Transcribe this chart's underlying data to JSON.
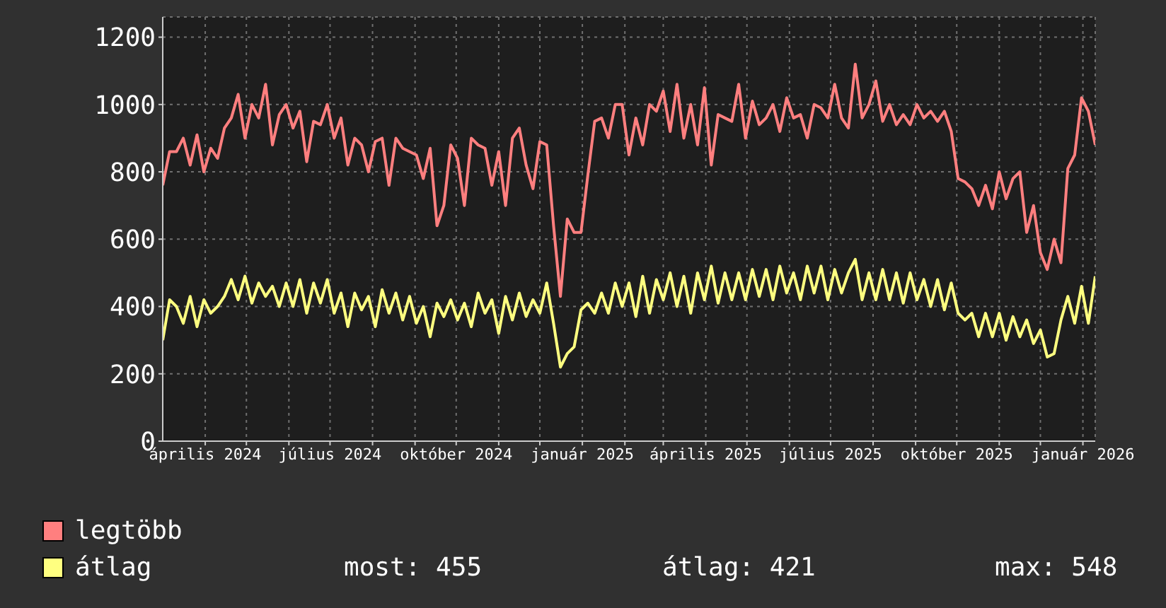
{
  "chart_data": {
    "type": "line",
    "x": [
      "2024-03-01",
      "2024-03-06",
      "2024-03-11",
      "2024-03-16",
      "2024-03-21",
      "2024-03-26",
      "2024-03-31",
      "2024-04-05",
      "2024-04-10",
      "2024-04-15",
      "2024-04-20",
      "2024-04-25",
      "2024-04-30",
      "2024-05-05",
      "2024-05-10",
      "2024-05-15",
      "2024-05-20",
      "2024-05-25",
      "2024-05-30",
      "2024-06-04",
      "2024-06-09",
      "2024-06-14",
      "2024-06-19",
      "2024-06-24",
      "2024-06-29",
      "2024-07-04",
      "2024-07-09",
      "2024-07-14",
      "2024-07-19",
      "2024-07-24",
      "2024-07-29",
      "2024-08-03",
      "2024-08-08",
      "2024-08-13",
      "2024-08-18",
      "2024-08-23",
      "2024-08-28",
      "2024-09-02",
      "2024-09-07",
      "2024-09-12",
      "2024-09-17",
      "2024-09-22",
      "2024-09-27",
      "2024-10-02",
      "2024-10-07",
      "2024-10-12",
      "2024-10-17",
      "2024-10-22",
      "2024-10-27",
      "2024-11-01",
      "2024-11-06",
      "2024-11-11",
      "2024-11-16",
      "2024-11-21",
      "2024-11-26",
      "2024-12-01",
      "2024-12-06",
      "2024-12-11",
      "2024-12-16",
      "2024-12-21",
      "2024-12-26",
      "2024-12-31",
      "2025-01-05",
      "2025-01-10",
      "2025-01-15",
      "2025-01-20",
      "2025-01-25",
      "2025-01-30",
      "2025-02-04",
      "2025-02-09",
      "2025-02-14",
      "2025-02-19",
      "2025-02-24",
      "2025-03-01",
      "2025-03-06",
      "2025-03-11",
      "2025-03-16",
      "2025-03-21",
      "2025-03-26",
      "2025-03-31",
      "2025-04-05",
      "2025-04-10",
      "2025-04-15",
      "2025-04-20",
      "2025-04-25",
      "2025-04-30",
      "2025-05-05",
      "2025-05-10",
      "2025-05-15",
      "2025-05-20",
      "2025-05-25",
      "2025-05-30",
      "2025-06-04",
      "2025-06-09",
      "2025-06-14",
      "2025-06-19",
      "2025-06-24",
      "2025-06-29",
      "2025-07-04",
      "2025-07-09",
      "2025-07-14",
      "2025-07-19",
      "2025-07-24",
      "2025-07-29",
      "2025-08-03",
      "2025-08-08",
      "2025-08-13",
      "2025-08-18",
      "2025-08-23",
      "2025-08-28",
      "2025-09-02",
      "2025-09-07",
      "2025-09-12",
      "2025-09-17",
      "2025-09-22",
      "2025-09-27",
      "2025-10-02",
      "2025-10-07",
      "2025-10-12",
      "2025-10-17",
      "2025-10-22",
      "2025-10-27",
      "2025-11-01",
      "2025-11-06",
      "2025-11-11",
      "2025-11-16",
      "2025-11-21",
      "2025-11-26",
      "2025-12-01",
      "2025-12-06",
      "2025-12-11",
      "2025-12-16",
      "2025-12-21",
      "2025-12-26",
      "2025-12-31",
      "2026-01-05",
      "2026-01-10"
    ],
    "series": [
      {
        "name": "legtöbb",
        "color": "#ff7f7f",
        "values": [
          760,
          860,
          860,
          900,
          820,
          910,
          800,
          870,
          840,
          930,
          960,
          1030,
          900,
          1000,
          960,
          1060,
          880,
          970,
          1000,
          930,
          980,
          830,
          950,
          940,
          1000,
          900,
          960,
          820,
          900,
          880,
          800,
          890,
          900,
          760,
          900,
          870,
          860,
          850,
          780,
          870,
          640,
          700,
          880,
          840,
          700,
          900,
          880,
          870,
          760,
          860,
          700,
          900,
          930,
          820,
          750,
          890,
          880,
          640,
          430,
          660,
          620,
          620,
          790,
          950,
          960,
          900,
          1000,
          1000,
          850,
          960,
          880,
          1000,
          980,
          1040,
          920,
          1060,
          900,
          1000,
          880,
          1050,
          820,
          970,
          960,
          950,
          1060,
          900,
          1010,
          940,
          960,
          1000,
          920,
          1020,
          960,
          970,
          900,
          1000,
          990,
          960,
          1060,
          960,
          930,
          1120,
          960,
          1000,
          1070,
          950,
          1000,
          940,
          970,
          940,
          1000,
          960,
          980,
          950,
          980,
          920,
          780,
          770,
          750,
          700,
          760,
          690,
          800,
          720,
          780,
          800,
          620,
          700,
          560,
          510,
          600,
          530,
          810,
          850,
          1020,
          980,
          880
        ]
      },
      {
        "name": "átlag",
        "color": "#ffff80",
        "values": [
          300,
          420,
          400,
          350,
          430,
          340,
          420,
          380,
          400,
          430,
          480,
          420,
          490,
          410,
          470,
          430,
          460,
          400,
          470,
          400,
          480,
          380,
          470,
          410,
          480,
          380,
          440,
          340,
          440,
          390,
          430,
          340,
          450,
          380,
          440,
          360,
          430,
          350,
          400,
          310,
          410,
          370,
          420,
          360,
          410,
          340,
          440,
          380,
          420,
          320,
          430,
          360,
          440,
          370,
          420,
          380,
          470,
          350,
          220,
          260,
          280,
          390,
          410,
          380,
          440,
          380,
          470,
          400,
          470,
          370,
          490,
          380,
          480,
          420,
          500,
          400,
          490,
          380,
          500,
          420,
          520,
          410,
          500,
          420,
          500,
          420,
          510,
          430,
          510,
          420,
          520,
          440,
          500,
          420,
          520,
          440,
          520,
          420,
          510,
          440,
          500,
          540,
          420,
          500,
          420,
          510,
          420,
          500,
          410,
          500,
          420,
          480,
          400,
          480,
          390,
          470,
          380,
          360,
          380,
          310,
          380,
          310,
          380,
          300,
          370,
          310,
          360,
          290,
          330,
          250,
          260,
          360,
          430,
          350,
          460,
          350,
          490
        ]
      }
    ],
    "xlim": [
      "2024-03-01",
      "2026-01-10"
    ],
    "xticks": [
      {
        "value": "2024-04-01",
        "label": "április 2024"
      },
      {
        "value": "2024-05-01",
        "label": null
      },
      {
        "value": "2024-06-01",
        "label": null
      },
      {
        "value": "2024-07-01",
        "label": "július 2024"
      },
      {
        "value": "2024-08-01",
        "label": null
      },
      {
        "value": "2024-09-01",
        "label": null
      },
      {
        "value": "2024-10-01",
        "label": "október 2024"
      },
      {
        "value": "2024-11-01",
        "label": null
      },
      {
        "value": "2024-12-01",
        "label": null
      },
      {
        "value": "2025-01-01",
        "label": "január 2025"
      },
      {
        "value": "2025-02-01",
        "label": null
      },
      {
        "value": "2025-03-01",
        "label": null
      },
      {
        "value": "2025-04-01",
        "label": "április 2025"
      },
      {
        "value": "2025-05-01",
        "label": null
      },
      {
        "value": "2025-06-01",
        "label": null
      },
      {
        "value": "2025-07-01",
        "label": "július 2025"
      },
      {
        "value": "2025-08-01",
        "label": null
      },
      {
        "value": "2025-09-01",
        "label": null
      },
      {
        "value": "2025-10-01",
        "label": "október 2025"
      },
      {
        "value": "2025-11-01",
        "label": null
      },
      {
        "value": "2025-12-01",
        "label": null
      },
      {
        "value": "2026-01-01",
        "label": "január 2026"
      }
    ],
    "ylim": [
      0,
      1260
    ],
    "yticks": [
      0,
      200,
      400,
      600,
      800,
      1000,
      1200
    ],
    "grid": true,
    "legend": "bottom",
    "annotations": [
      "most: 455",
      "átlag: 421",
      "max: 548"
    ]
  }
}
